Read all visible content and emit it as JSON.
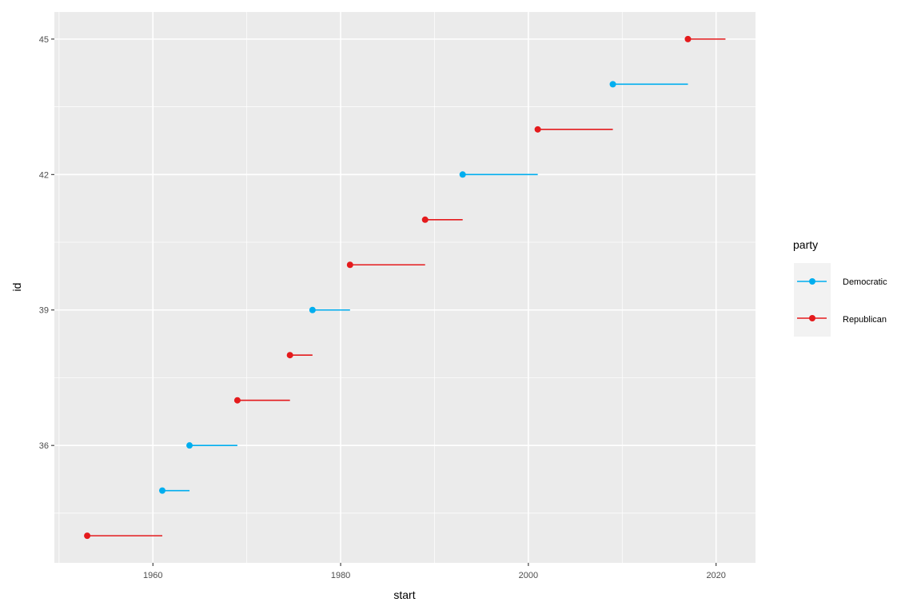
{
  "chart_data": {
    "type": "scatter",
    "xlabel": "start",
    "ylabel": "id",
    "xlim": [
      1949.5,
      2024.2
    ],
    "ylim": [
      33.4,
      45.6
    ],
    "x_ticks": [
      1960,
      1980,
      2000,
      2020
    ],
    "x_tick_labels": [
      "1960",
      "1980",
      "2000",
      "2020"
    ],
    "y_ticks": [
      36,
      39,
      42,
      45
    ],
    "y_tick_labels": [
      "36",
      "39",
      "42",
      "45"
    ],
    "grid": true,
    "legend": {
      "title": "party",
      "position": "right",
      "entries": [
        {
          "label": "Democratic",
          "color": "#00AEEF"
        },
        {
          "label": "Republican",
          "color": "#E41A1C"
        }
      ]
    },
    "colors": {
      "Democratic": "#00AEEF",
      "Republican": "#E41A1C"
    },
    "segments": [
      {
        "id": 34,
        "start": 1953.0,
        "end": 1961.0,
        "party": "Republican"
      },
      {
        "id": 35,
        "start": 1961.0,
        "end": 1963.9,
        "party": "Democratic"
      },
      {
        "id": 36,
        "start": 1963.9,
        "end": 1969.0,
        "party": "Democratic"
      },
      {
        "id": 37,
        "start": 1969.0,
        "end": 1974.6,
        "party": "Republican"
      },
      {
        "id": 38,
        "start": 1974.6,
        "end": 1977.0,
        "party": "Republican"
      },
      {
        "id": 39,
        "start": 1977.0,
        "end": 1981.0,
        "party": "Democratic"
      },
      {
        "id": 40,
        "start": 1981.0,
        "end": 1989.0,
        "party": "Republican"
      },
      {
        "id": 41,
        "start": 1989.0,
        "end": 1993.0,
        "party": "Republican"
      },
      {
        "id": 42,
        "start": 1993.0,
        "end": 2001.0,
        "party": "Democratic"
      },
      {
        "id": 43,
        "start": 2001.0,
        "end": 2009.0,
        "party": "Republican"
      },
      {
        "id": 44,
        "start": 2009.0,
        "end": 2017.0,
        "party": "Democratic"
      },
      {
        "id": 45,
        "start": 2017.0,
        "end": 2021.0,
        "party": "Republican"
      }
    ]
  }
}
